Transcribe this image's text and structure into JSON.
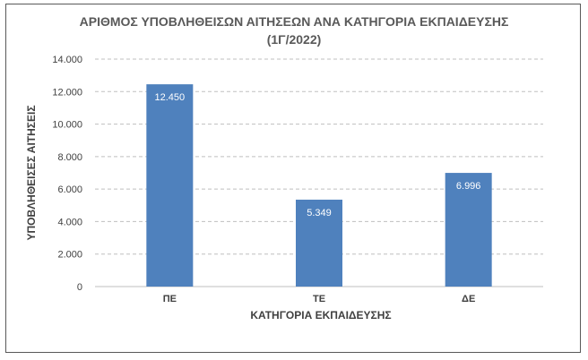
{
  "chart_data": {
    "type": "bar",
    "title_line1": "ΑΡΙΘΜΟΣ ΥΠΟΒΛΗΘΕΙΣΩΝ ΑΙΤΗΣΕΩΝ ΑΝΑ ΚΑΤΗΓΟΡΙΑ ΕΚΠΑΙΔΕΥΣΗΣ",
    "title_line2": "(1Γ/2022)",
    "xlabel": "ΚΑΤΗΓΟΡΙΑ ΕΚΠΑΙΔΕΥΣΗΣ",
    "ylabel": "ΥΠΟΒΛΗΘΕΙΣΕΣ ΑΙΤΗΣΕΙΣ",
    "categories": [
      "ΠΕ",
      "ΤΕ",
      "ΔΕ"
    ],
    "values": [
      12450,
      5349,
      6996
    ],
    "data_labels": [
      "12.450",
      "5.349",
      "6.996"
    ],
    "ylim": [
      0,
      14000
    ],
    "yticks": [
      0,
      2000,
      4000,
      6000,
      8000,
      10000,
      12000,
      14000
    ],
    "ytick_labels": [
      "0",
      "2.000",
      "4.000",
      "6.000",
      "8.000",
      "10.000",
      "12.000",
      "14.000"
    ],
    "grid": true,
    "bar_color": "#4f81bd",
    "grid_color": "#bfbfbf"
  }
}
